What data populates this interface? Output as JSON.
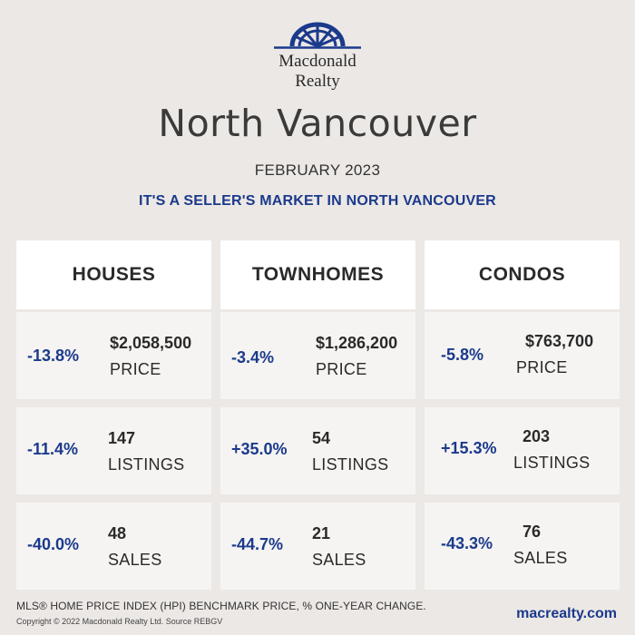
{
  "brand": {
    "name_line1": "Macdonald",
    "name_line2": "Realty",
    "logo_icon": "sunburst-arch-logo",
    "color": "#1b3a8c"
  },
  "header": {
    "title": "North Vancouver",
    "period": "FEBRUARY 2023",
    "tagline": "IT'S A SELLER'S MARKET IN NORTH VANCOUVER"
  },
  "categories": [
    {
      "label": "HOUSES",
      "price": {
        "change": "-13.8%",
        "value": "$2,058,500",
        "label": "PRICE"
      },
      "listings": {
        "change": "-11.4%",
        "value": "147",
        "label": "LISTINGS"
      },
      "sales": {
        "change": "-40.0%",
        "value": "48",
        "label": "SALES"
      }
    },
    {
      "label": "TOWNHOMES",
      "price": {
        "change": "-3.4%",
        "value": "$1,286,200",
        "label": "PRICE"
      },
      "listings": {
        "change": "+35.0%",
        "value": "54",
        "label": "LISTINGS"
      },
      "sales": {
        "change": "-44.7%",
        "value": "21",
        "label": "SALES"
      }
    },
    {
      "label": "CONDOS",
      "price": {
        "change": "-5.8%",
        "value": "$763,700",
        "label": "PRICE"
      },
      "listings": {
        "change": "+15.3%",
        "value": "203",
        "label": "LISTINGS"
      },
      "sales": {
        "change": "-43.3%",
        "value": "76",
        "label": "SALES"
      }
    }
  ],
  "footer": {
    "note": "MLS® HOME PRICE INDEX (HPI) BENCHMARK PRICE, % ONE-YEAR CHANGE.",
    "copyright": "Copyright © 2022 Macdonald Realty Ltd. Source REBGV",
    "website": "macrealty.com"
  },
  "colors": {
    "background": "#ece8e5",
    "accent": "#1b3a8c",
    "card": "#f6f4f2",
    "header_card": "#ffffff"
  }
}
